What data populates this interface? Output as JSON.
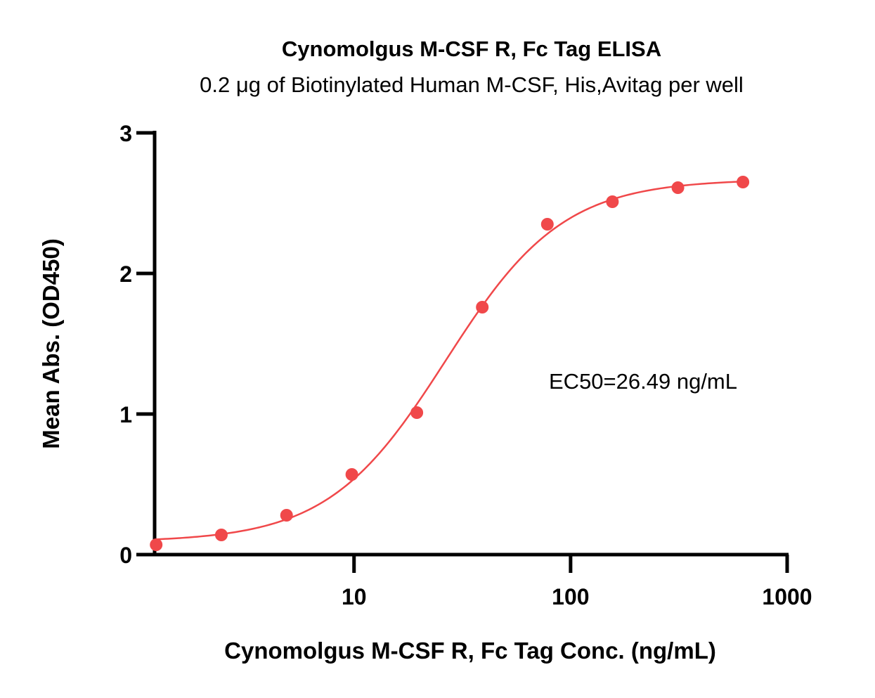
{
  "chart_data": {
    "type": "scatter",
    "title": "Cynomolgus M-CSF R, Fc Tag ELISA",
    "subtitle": "0.2 μg of Biotinylated Human M-CSF, His,Avitag per well",
    "xlabel": "Cynomolgus M-CSF R, Fc Tag Conc. (ng/mL)",
    "ylabel": "Mean Abs. (OD450)",
    "x_scale": "log",
    "xlim": [
      1.2,
      1000
    ],
    "ylim": [
      0,
      3
    ],
    "x_ticks": [
      10,
      100,
      1000
    ],
    "x_tick_labels": [
      "10",
      "100",
      "1000"
    ],
    "y_ticks": [
      0,
      1,
      2,
      3
    ],
    "y_tick_labels": [
      "0",
      "1",
      "2",
      "3"
    ],
    "grid": false,
    "annotation": "EC50=26.49 ng/mL",
    "series": [
      {
        "color": "#f0484a",
        "x": [
          1.22,
          2.44,
          4.88,
          9.77,
          19.5,
          39.1,
          78.1,
          156,
          313,
          625
        ],
        "y": [
          0.07,
          0.14,
          0.28,
          0.57,
          1.01,
          1.76,
          2.35,
          2.51,
          2.61,
          2.65
        ]
      }
    ],
    "fit": {
      "type": "4PL",
      "bottom": 0.09,
      "top": 2.67,
      "ec50": 26.49,
      "hill": 1.6
    }
  }
}
